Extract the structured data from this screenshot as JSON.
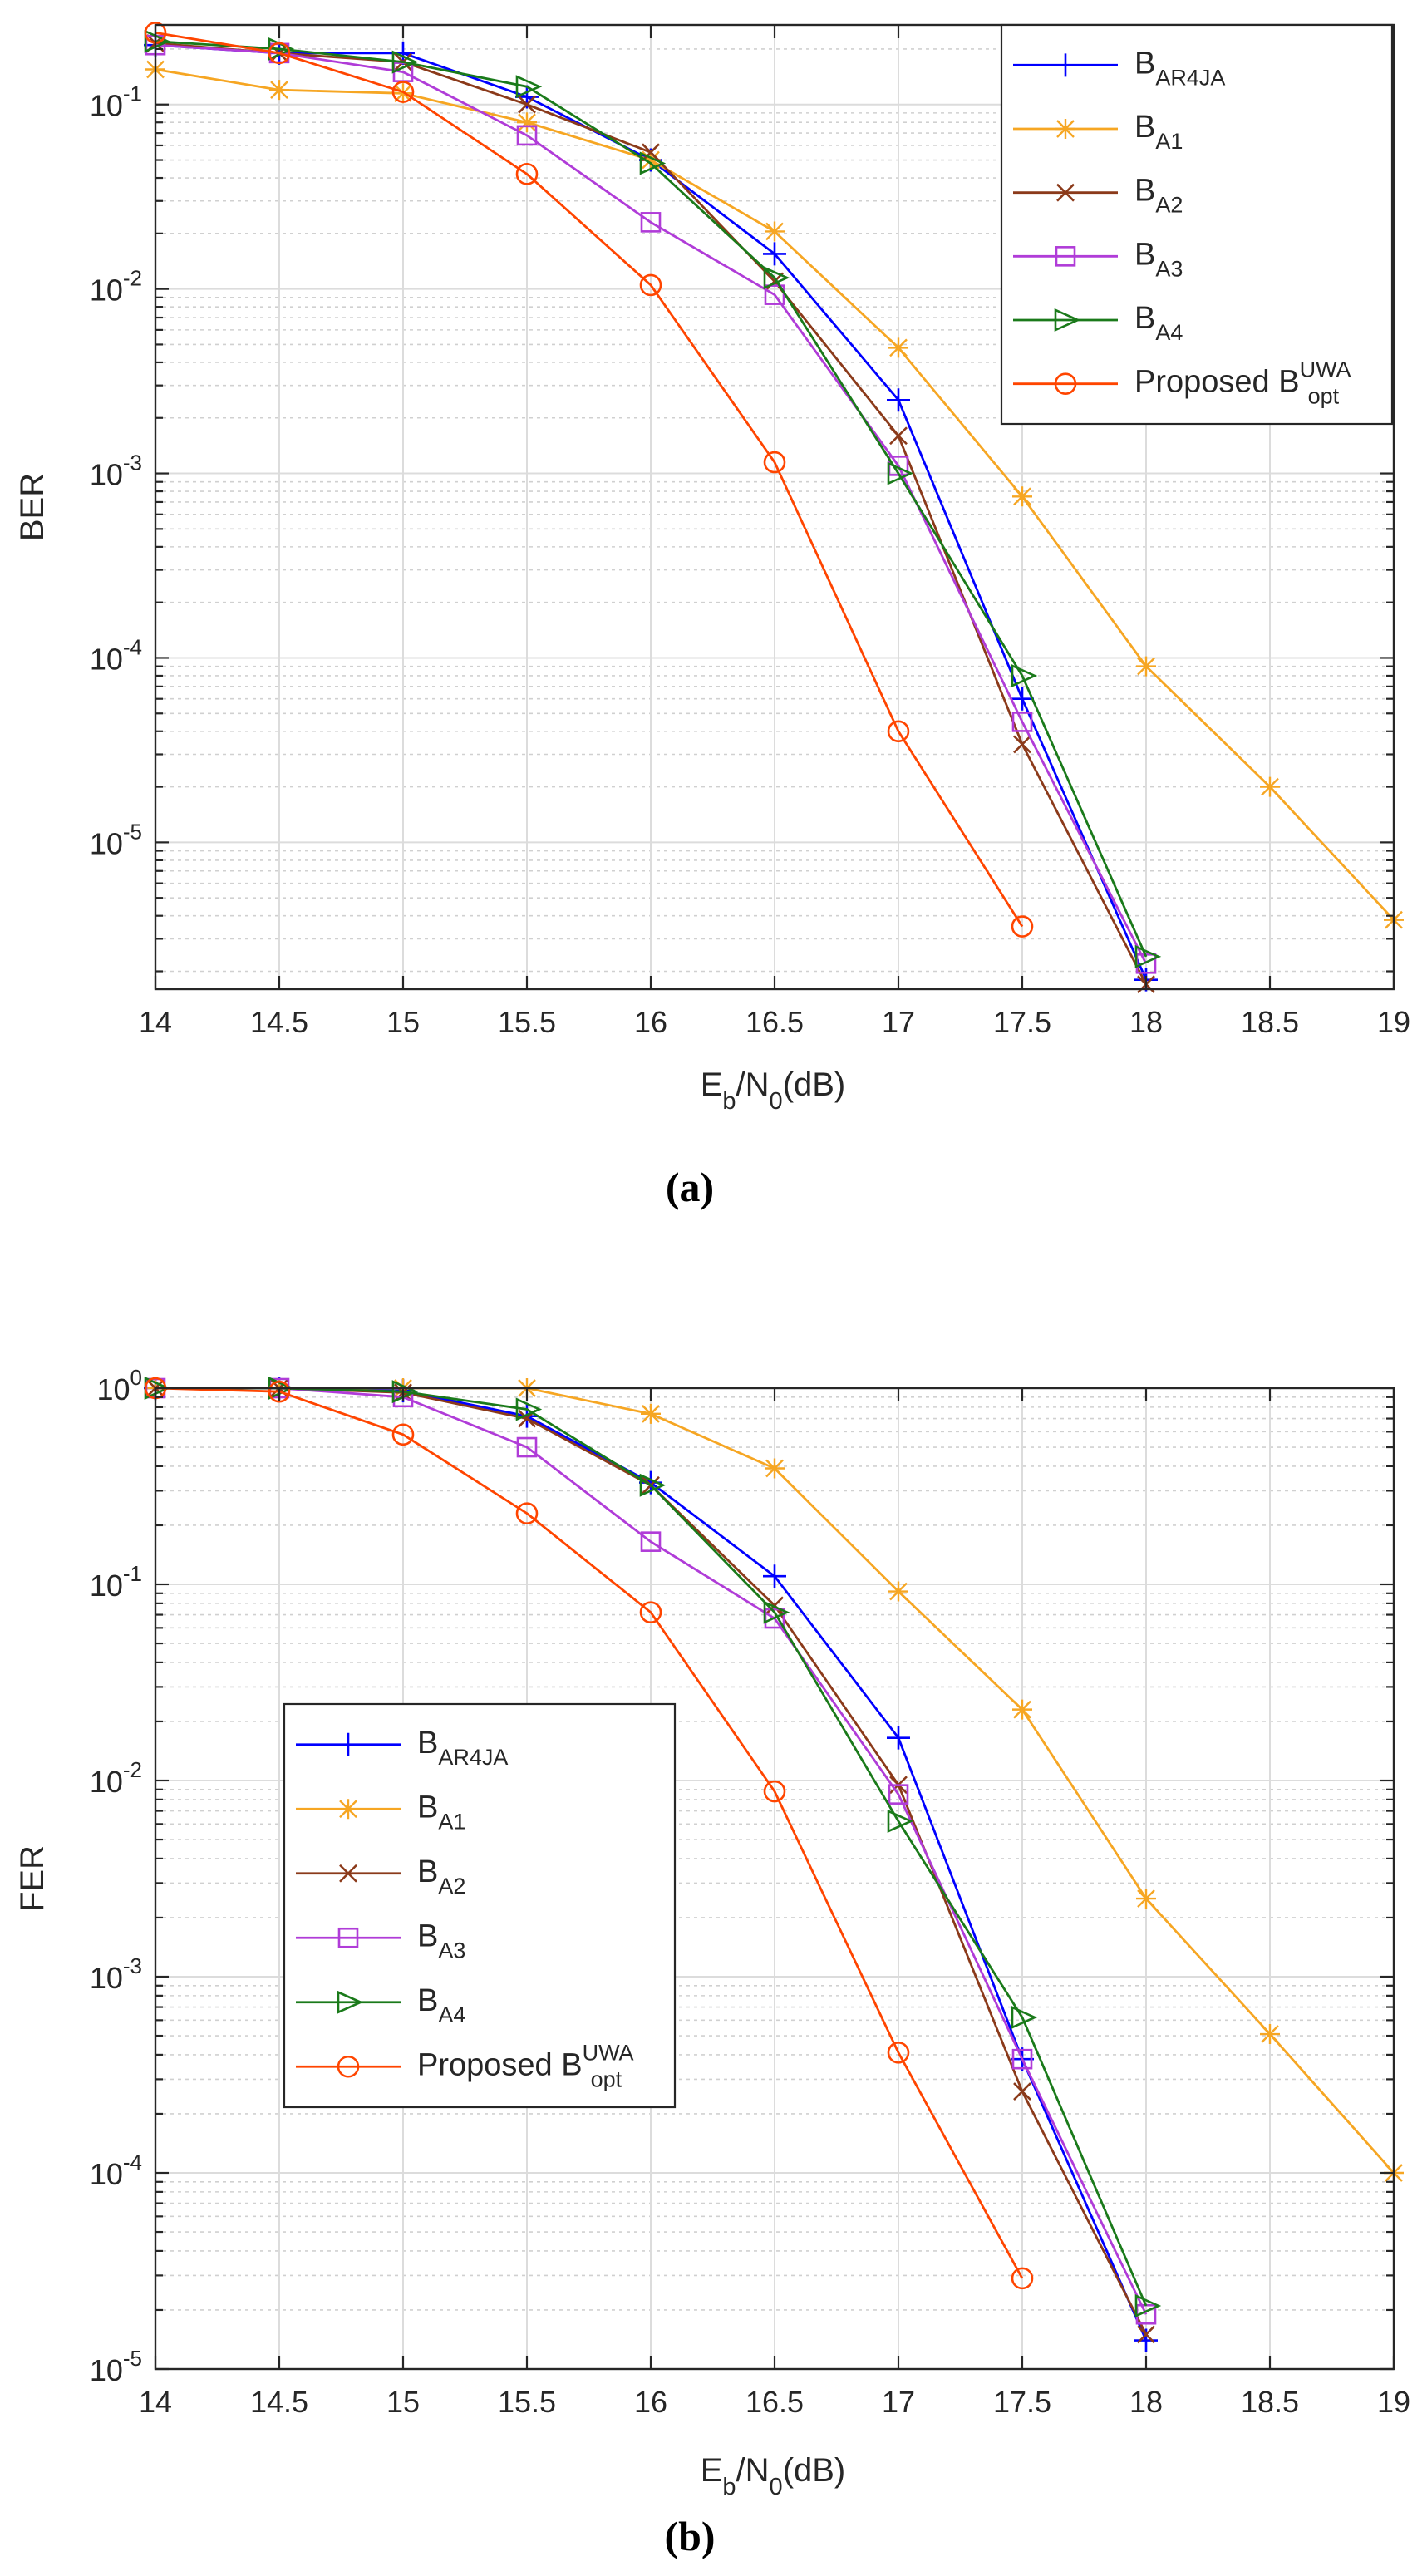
{
  "figure": {
    "panels": [
      "(a)",
      "(b)"
    ]
  },
  "chart_data": [
    {
      "type": "line",
      "panel": "(a)",
      "caption": "(a)",
      "yscale": "log",
      "xlabel": "Eb/N0(dB)",
      "ylabel": "BER",
      "xlim": [
        14,
        19
      ],
      "ylim": [
        1.6e-06,
        0.27
      ],
      "grid": true,
      "legend_location": "top-right",
      "x_ticks": [
        "14",
        "14.5",
        "15",
        "15.5",
        "16",
        "16.5",
        "17",
        "17.5",
        "18",
        "18.5",
        "19"
      ],
      "y_ticks": [
        {
          "value": 1e-05,
          "base": "10",
          "exp": "-5"
        },
        {
          "value": 0.0001,
          "base": "10",
          "exp": "-4"
        },
        {
          "value": 0.001,
          "base": "10",
          "exp": "-3"
        },
        {
          "value": 0.01,
          "base": "10",
          "exp": "-2"
        },
        {
          "value": 0.1,
          "base": "10",
          "exp": "-1"
        }
      ],
      "series": [
        {
          "name": "B_AR4JA",
          "base": "B",
          "sub": "AR4JA",
          "sup": "",
          "color": "#0000ff",
          "marker": "plus",
          "x": [
            14,
            14.5,
            15,
            15.5,
            16,
            16.5,
            17,
            17.5,
            18
          ],
          "values": [
            0.21,
            0.19,
            0.19,
            0.11,
            0.05,
            0.0155,
            0.0025,
            6e-05,
            1.8e-06
          ]
        },
        {
          "name": "B_A1",
          "base": "B",
          "sub": "A1",
          "sup": "",
          "color": "#f6a623",
          "marker": "asterisk",
          "x": [
            14,
            14.5,
            15,
            15.5,
            16,
            16.5,
            17,
            17.5,
            18,
            18.5,
            19
          ],
          "values": [
            0.155,
            0.12,
            0.115,
            0.08,
            0.05,
            0.0205,
            0.0048,
            0.00075,
            9e-05,
            2e-05,
            3.8e-06
          ]
        },
        {
          "name": "B_A2",
          "base": "B",
          "sub": "A2",
          "sup": "",
          "color": "#8b3a1a",
          "marker": "x",
          "x": [
            14,
            14.5,
            15,
            15.5,
            16,
            16.5,
            17,
            17.5,
            18
          ],
          "values": [
            0.215,
            0.19,
            0.17,
            0.1,
            0.055,
            0.011,
            0.0016,
            3.4e-05,
            1.7e-06
          ]
        },
        {
          "name": "B_A3",
          "base": "B",
          "sub": "A3",
          "sup": "",
          "color": "#b03cd8",
          "marker": "square",
          "x": [
            14,
            14.5,
            15,
            15.5,
            16,
            16.5,
            17,
            17.5,
            18
          ],
          "values": [
            0.21,
            0.19,
            0.15,
            0.068,
            0.023,
            0.0093,
            0.0011,
            4.5e-05,
            2.2e-06
          ]
        },
        {
          "name": "B_A4",
          "base": "B",
          "sub": "A4",
          "sup": "",
          "color": "#1a7a1a",
          "marker": "triangle-right",
          "x": [
            14,
            14.5,
            15,
            15.5,
            16,
            16.5,
            17,
            17.5,
            18
          ],
          "values": [
            0.22,
            0.2,
            0.17,
            0.125,
            0.048,
            0.0115,
            0.001,
            8e-05,
            2.4e-06
          ]
        },
        {
          "name": "Proposed B_opt^UWA",
          "base": "Proposed B",
          "sub": "opt",
          "sup": "UWA",
          "color": "#ff4500",
          "marker": "circle",
          "x": [
            14,
            14.5,
            15,
            15.5,
            16,
            16.5,
            17,
            17.5
          ],
          "values": [
            0.245,
            0.19,
            0.117,
            0.042,
            0.0105,
            0.00115,
            4e-05,
            3.5e-06
          ]
        }
      ]
    },
    {
      "type": "line",
      "panel": "(b)",
      "caption": "(b)",
      "yscale": "log",
      "xlabel": "Eb/N0(dB)",
      "ylabel": "FER",
      "xlim": [
        14,
        19
      ],
      "ylim": [
        1e-05,
        1.0
      ],
      "grid": true,
      "legend_location": "bottom-left",
      "x_ticks": [
        "14",
        "14.5",
        "15",
        "15.5",
        "16",
        "16.5",
        "17",
        "17.5",
        "18",
        "18.5",
        "19"
      ],
      "y_ticks": [
        {
          "value": 1e-05,
          "base": "10",
          "exp": "-5"
        },
        {
          "value": 0.0001,
          "base": "10",
          "exp": "-4"
        },
        {
          "value": 0.001,
          "base": "10",
          "exp": "-3"
        },
        {
          "value": 0.01,
          "base": "10",
          "exp": "-2"
        },
        {
          "value": 0.1,
          "base": "10",
          "exp": "-1"
        },
        {
          "value": 1,
          "base": "10",
          "exp": "0"
        }
      ],
      "series": [
        {
          "name": "B_AR4JA",
          "base": "B",
          "sub": "AR4JA",
          "sup": "",
          "color": "#0000ff",
          "marker": "plus",
          "x": [
            14,
            14.5,
            15,
            15.5,
            16,
            16.5,
            17,
            17.5,
            18
          ],
          "values": [
            1.0,
            1.0,
            0.97,
            0.72,
            0.33,
            0.11,
            0.0165,
            0.00038,
            1.4e-05
          ]
        },
        {
          "name": "B_A1",
          "base": "B",
          "sub": "A1",
          "sup": "",
          "color": "#f6a623",
          "marker": "asterisk",
          "x": [
            14,
            14.5,
            15,
            15.5,
            16,
            16.5,
            17,
            17.5,
            18,
            18.5,
            19
          ],
          "values": [
            1.0,
            1.0,
            1.0,
            1.0,
            0.74,
            0.39,
            0.092,
            0.023,
            0.0025,
            0.00051,
            0.0001
          ]
        },
        {
          "name": "B_A2",
          "base": "B",
          "sub": "A2",
          "sup": "",
          "color": "#8b3a1a",
          "marker": "x",
          "x": [
            14,
            14.5,
            15,
            15.5,
            16,
            16.5,
            17,
            17.5,
            18
          ],
          "values": [
            1.0,
            1.0,
            0.95,
            0.7,
            0.32,
            0.078,
            0.0095,
            0.00026,
            1.5e-05
          ]
        },
        {
          "name": "B_A3",
          "base": "B",
          "sub": "A3",
          "sup": "",
          "color": "#b03cd8",
          "marker": "square",
          "x": [
            14,
            14.5,
            15,
            15.5,
            16,
            16.5,
            17,
            17.5,
            18
          ],
          "values": [
            1.0,
            1.0,
            0.9,
            0.5,
            0.165,
            0.067,
            0.0085,
            0.00038,
            1.9e-05
          ]
        },
        {
          "name": "B_A4",
          "base": "B",
          "sub": "A4",
          "sup": "",
          "color": "#1a7a1a",
          "marker": "triangle-right",
          "x": [
            14,
            14.5,
            15,
            15.5,
            16,
            16.5,
            17,
            17.5,
            18
          ],
          "values": [
            1.0,
            1.0,
            0.96,
            0.78,
            0.32,
            0.072,
            0.0062,
            0.00062,
            2.1e-05
          ]
        },
        {
          "name": "Proposed B_opt^UWA",
          "base": "Proposed B",
          "sub": "opt",
          "sup": "UWA",
          "color": "#ff4500",
          "marker": "circle",
          "x": [
            14,
            14.5,
            15,
            15.5,
            16,
            16.5,
            17,
            17.5
          ],
          "values": [
            1.0,
            0.96,
            0.58,
            0.23,
            0.072,
            0.0088,
            0.00041,
            2.9e-05
          ]
        }
      ]
    }
  ]
}
